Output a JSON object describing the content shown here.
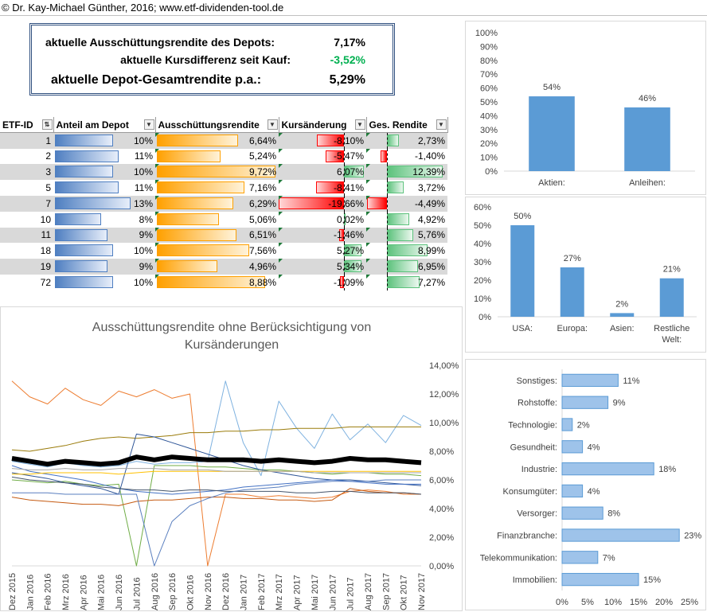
{
  "copyright": "© Dr. Kay-Michael Günther, 2016; www.etf-dividenden-tool.de",
  "summary": {
    "ausschuettung_label": "aktuelle Ausschüttungsrendite des Depots:",
    "ausschuettung_value": "7,17%",
    "kursdiff_label": "aktuelle Kursdifferenz seit Kauf:",
    "kursdiff_value": "-3,52%",
    "gesamt_label": "aktuelle Depot-Gesamtrendite p.a.:",
    "gesamt_value": "5,29%"
  },
  "colors": {
    "bar_blue": "#5b9bd5",
    "green_text": "#00b050",
    "thick_line": "#000000"
  },
  "table": {
    "headers": [
      "ETF-ID",
      "Anteil am Depot",
      "Ausschüttungsrendite",
      "Kursänderung",
      "Ges. Rendite"
    ],
    "rows": [
      {
        "id": "1",
        "anteil": "10%",
        "anteil_v": 10,
        "aus": "6,64%",
        "aus_v": 6.64,
        "kurs": "-8,10%",
        "kurs_v": -8.1,
        "ges": "2,73%",
        "ges_v": 2.73
      },
      {
        "id": "2",
        "anteil": "11%",
        "anteil_v": 11,
        "aus": "5,24%",
        "aus_v": 5.24,
        "kurs": "-5,47%",
        "kurs_v": -5.47,
        "ges": "-1,40%",
        "ges_v": -1.4
      },
      {
        "id": "3",
        "anteil": "10%",
        "anteil_v": 10,
        "aus": "9,72%",
        "aus_v": 9.72,
        "kurs": "6,07%",
        "kurs_v": 6.07,
        "ges": "12,39%",
        "ges_v": 12.39
      },
      {
        "id": "5",
        "anteil": "11%",
        "anteil_v": 11,
        "aus": "7,16%",
        "aus_v": 7.16,
        "kurs": "-8,41%",
        "kurs_v": -8.41,
        "ges": "3,72%",
        "ges_v": 3.72
      },
      {
        "id": "7",
        "anteil": "13%",
        "anteil_v": 13,
        "aus": "6,29%",
        "aus_v": 6.29,
        "kurs": "-19,66%",
        "kurs_v": -19.66,
        "ges": "-4,49%",
        "ges_v": -4.49
      },
      {
        "id": "10",
        "anteil": "8%",
        "anteil_v": 8,
        "aus": "5,06%",
        "aus_v": 5.06,
        "kurs": "0,02%",
        "kurs_v": 0.02,
        "ges": "4,92%",
        "ges_v": 4.92
      },
      {
        "id": "11",
        "anteil": "9%",
        "anteil_v": 9,
        "aus": "6,51%",
        "aus_v": 6.51,
        "kurs": "-1,46%",
        "kurs_v": -1.46,
        "ges": "5,76%",
        "ges_v": 5.76
      },
      {
        "id": "18",
        "anteil": "10%",
        "anteil_v": 10,
        "aus": "7,56%",
        "aus_v": 7.56,
        "kurs": "5,27%",
        "kurs_v": 5.27,
        "ges": "8,99%",
        "ges_v": 8.99
      },
      {
        "id": "19",
        "anteil": "9%",
        "anteil_v": 9,
        "aus": "4,96%",
        "aus_v": 4.96,
        "kurs": "5,34%",
        "kurs_v": 5.34,
        "ges": "6,95%",
        "ges_v": 6.95
      },
      {
        "id": "72",
        "anteil": "10%",
        "anteil_v": 10,
        "aus": "8,88%",
        "aus_v": 8.88,
        "kurs": "-1,09%",
        "kurs_v": -1.09,
        "ges": "7,27%",
        "ges_v": 7.27
      }
    ]
  },
  "chart_data": [
    {
      "type": "line",
      "title": "Ausschüttungsrendite ohne Berücksichtigung von Kursänderungen",
      "x": [
        "Dez 2015",
        "Jan 2016",
        "Feb 2016",
        "Mrz 2016",
        "Apr 2016",
        "Mai 2016",
        "Jun 2016",
        "Jul 2016",
        "Aug 2016",
        "Sep 2016",
        "Okt 2016",
        "Nov 2016",
        "Dez 2016",
        "Jan 2017",
        "Feb 2017",
        "Mrz 2017",
        "Apr 2017",
        "Mai 2017",
        "Jun 2017",
        "Jul 2017",
        "Aug 2017",
        "Sep 2017",
        "Okt 2017",
        "Nov 2017"
      ],
      "y_ticks": [
        "0,00%",
        "2,00%",
        "4,00%",
        "6,00%",
        "8,00%",
        "10,00%",
        "12,00%",
        "14,00%"
      ],
      "ylim": [
        0,
        14
      ],
      "y_axis_position": "right",
      "series": [
        {
          "color": "#000000",
          "width": 6,
          "values": [
            7.5,
            7.3,
            7.1,
            7.3,
            7.2,
            7.1,
            7.2,
            7.6,
            7.4,
            7.6,
            7.5,
            7.4,
            7.4,
            7.4,
            7.3,
            7.4,
            7.3,
            7.2,
            7.3,
            7.5,
            7.4,
            7.4,
            7.3,
            7.2
          ]
        },
        {
          "color": "#ed7d31",
          "width": 1,
          "values": [
            12.9,
            11.8,
            11.3,
            12.4,
            11.6,
            11.2,
            12.2,
            11.8,
            12.3,
            11.7,
            12.0,
            0.0,
            5.0,
            5.0,
            4.8,
            4.9,
            4.8,
            4.7,
            4.8,
            5.2,
            5.3,
            5.2,
            5.0,
            5.0
          ]
        },
        {
          "color": "#7fb2e0",
          "width": 1,
          "values": [
            7.3,
            7.1,
            6.9,
            7.2,
            7.0,
            6.9,
            7.0,
            7.3,
            7.1,
            7.2,
            7.2,
            7.3,
            12.9,
            8.6,
            6.3,
            11.5,
            9.6,
            8.2,
            10.6,
            8.8,
            9.9,
            8.6,
            10.5,
            9.8
          ]
        },
        {
          "color": "#9a7b0a",
          "width": 1,
          "values": [
            8.1,
            8.0,
            8.2,
            8.4,
            8.7,
            8.9,
            9.0,
            8.9,
            9.0,
            9.1,
            9.3,
            9.3,
            9.4,
            9.4,
            9.5,
            9.5,
            9.6,
            9.6,
            9.6,
            9.7,
            9.7,
            9.7,
            9.7,
            9.7
          ]
        },
        {
          "color": "#70ad47",
          "width": 1,
          "values": [
            6.0,
            5.9,
            5.8,
            5.9,
            5.7,
            5.6,
            5.7,
            0.0,
            7.0,
            7.0,
            7.0,
            6.9,
            6.9,
            6.8,
            6.7,
            6.7,
            6.6,
            6.5,
            6.4,
            6.5,
            6.5,
            6.4,
            6.4,
            6.3
          ]
        },
        {
          "color": "#2e5597",
          "width": 1,
          "values": [
            6.5,
            6.3,
            6.1,
            5.8,
            5.6,
            5.4,
            5.0,
            9.2,
            9.0,
            8.6,
            8.2,
            7.8,
            7.4,
            7.0,
            6.7,
            6.5,
            6.3,
            6.1,
            6.0,
            6.0,
            5.9,
            5.8,
            5.7,
            5.6
          ]
        },
        {
          "color": "#c55a11",
          "width": 1,
          "values": [
            4.8,
            4.6,
            4.5,
            4.4,
            4.3,
            4.3,
            4.2,
            4.5,
            4.6,
            4.6,
            4.7,
            4.8,
            4.8,
            4.7,
            4.7,
            4.6,
            4.6,
            4.5,
            4.6,
            5.4,
            5.2,
            5.1,
            5.1,
            5.0
          ]
        },
        {
          "color": "#4472c4",
          "width": 1,
          "values": [
            7.0,
            6.6,
            6.4,
            6.2,
            6.0,
            5.7,
            5.4,
            5.2,
            5.1,
            5.0,
            5.1,
            5.2,
            5.3,
            5.5,
            5.6,
            5.7,
            5.8,
            5.9,
            6.0,
            5.9,
            5.8,
            5.7,
            5.7,
            5.7
          ]
        },
        {
          "color": "#44546a",
          "width": 1,
          "values": [
            6.2,
            6.0,
            5.9,
            5.8,
            5.7,
            5.5,
            5.4,
            5.3,
            5.3,
            5.2,
            5.3,
            5.3,
            5.2,
            5.2,
            5.2,
            5.2,
            5.1,
            5.1,
            5.2,
            5.2,
            5.1,
            5.1,
            5.1,
            5.0
          ]
        },
        {
          "color": "#5a7fbf",
          "width": 1,
          "values": [
            5.1,
            5.1,
            5.1,
            5.0,
            5.0,
            5.0,
            5.0,
            5.0,
            0.0,
            3.1,
            4.2,
            4.7,
            5.1,
            5.3,
            5.4,
            5.5,
            5.7,
            5.8,
            5.9,
            5.9,
            5.9,
            6.0,
            6.0,
            6.0
          ]
        },
        {
          "color": "#ffc000",
          "width": 1,
          "values": [
            6.4,
            6.4,
            6.5,
            6.5,
            6.5,
            6.5,
            6.4,
            6.5,
            6.6,
            6.6,
            6.6,
            6.6,
            6.6,
            6.6,
            6.6,
            6.6,
            6.6,
            6.6,
            6.6,
            6.6,
            6.6,
            6.6,
            6.6,
            6.6
          ]
        },
        {
          "color": "#a5a5a5",
          "width": 1,
          "values": [
            6.8,
            6.7,
            6.7,
            6.8,
            6.7,
            6.7,
            6.8,
            6.8,
            6.8,
            6.7,
            6.7,
            6.7,
            6.6,
            6.6,
            6.6,
            6.6,
            6.6,
            6.5,
            6.5,
            6.5,
            6.5,
            6.5,
            6.5,
            6.5
          ]
        }
      ]
    },
    {
      "type": "bar",
      "categories": [
        "Aktien:",
        "Anleihen:"
      ],
      "values": [
        54,
        46
      ],
      "value_labels": [
        "54%",
        "46%"
      ],
      "y_ticks": [
        "0%",
        "10%",
        "20%",
        "30%",
        "40%",
        "50%",
        "60%",
        "70%",
        "80%",
        "90%",
        "100%"
      ],
      "ylim": [
        0,
        100
      ]
    },
    {
      "type": "bar",
      "categories": [
        "USA:",
        "Europa:",
        "Asien:",
        "Restliche Welt:"
      ],
      "values": [
        50,
        27,
        2,
        21
      ],
      "value_labels": [
        "50%",
        "27%",
        "2%",
        "21%"
      ],
      "y_ticks": [
        "0%",
        "10%",
        "20%",
        "30%",
        "40%",
        "50%",
        "60%"
      ],
      "ylim": [
        0,
        60
      ]
    },
    {
      "type": "bar",
      "orientation": "horizontal",
      "categories": [
        "Sonstiges:",
        "Rohstoffe:",
        "Technologie:",
        "Gesundheit:",
        "Industrie:",
        "Konsumgüter:",
        "Versorger:",
        "Finanzbranche:",
        "Telekommunikation:",
        "Immobilien:"
      ],
      "values": [
        11,
        9,
        2,
        4,
        18,
        4,
        8,
        23,
        7,
        15
      ],
      "value_labels": [
        "11%",
        "9%",
        "2%",
        "4%",
        "18%",
        "4%",
        "8%",
        "23%",
        "7%",
        "15%"
      ],
      "x_ticks": [
        "0%",
        "5%",
        "10%",
        "15%",
        "20%",
        "25%"
      ],
      "xlim": [
        0,
        25
      ]
    }
  ]
}
